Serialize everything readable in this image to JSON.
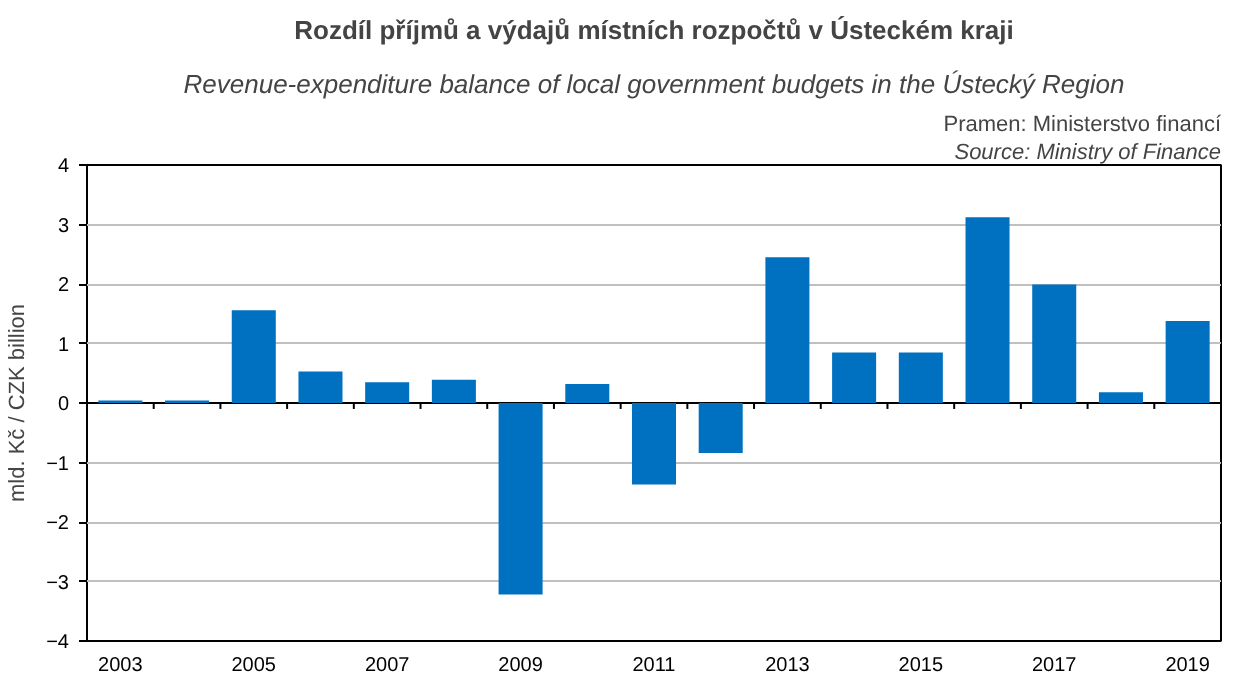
{
  "chart_data": {
    "type": "bar",
    "title": "Rozdíl příjmů a výdajů místních rozpočtů v Ústeckém kraji",
    "subtitle": "Revenue-expenditure balance of local government budgets in the Ústecký Region",
    "annotations": [
      "Pramen: Ministerstvo financí",
      "Source: Ministry of Finance"
    ],
    "ylabel": "mld. Kč / CZK billion",
    "categories": [
      "2003",
      null,
      "2005",
      null,
      "2007",
      null,
      "2009",
      null,
      "2011",
      null,
      "2013",
      null,
      "2015",
      null,
      "2017",
      null,
      "2019"
    ],
    "values": [
      0.04,
      0.04,
      1.56,
      0.53,
      0.35,
      0.39,
      -3.22,
      0.32,
      -1.37,
      -0.84,
      2.45,
      0.85,
      0.85,
      3.12,
      1.99,
      0.18,
      1.38
    ],
    "color": "#0070c0",
    "ylim": [
      -4,
      4
    ],
    "yticks": [
      -4,
      -3,
      -2,
      -1,
      0,
      1,
      2,
      3,
      4
    ],
    "grid": "y"
  }
}
